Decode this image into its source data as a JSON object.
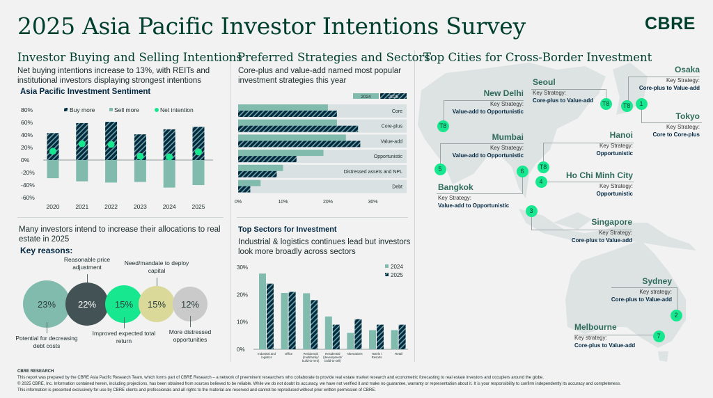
{
  "header": {
    "title": "2025 Asia Pacific Investor Intentions Survey",
    "logo": "CBRE"
  },
  "col1": {
    "heading": "Investor Buying and Selling Intentions",
    "subtitle": "Net buying intentions increase to 13%, with REITs and institutional investors displaying strongest intentions",
    "lower_text": "Many investors intend to increase their allocations to real estate in 2025",
    "key_reasons": "Key reasons:",
    "reasons": [
      {
        "value": "23%",
        "label": "Potential for decreasing debt costs",
        "color": "#80bbad"
      },
      {
        "value": "22%",
        "label": "Reasonable price adjustment",
        "color": "#435254"
      },
      {
        "value": "15%",
        "label": "Improved expected total return",
        "color": "#17e88f"
      },
      {
        "value": "15%",
        "label": "Need/mandate to deploy capital",
        "color": "#dbd99a"
      },
      {
        "value": "12%",
        "label": "More distressed opportunities",
        "color": "#cacaca"
      }
    ]
  },
  "col2": {
    "heading": "Preferred Strategies and Sectors",
    "subtitle": "Core-plus and value-add named most popular investment strategies this year",
    "sectors_title": "Top Sectors for Investment",
    "sectors_subtitle": "Industrial & logistics continues lead but investors look more broadly across sectors"
  },
  "col3": {
    "heading": "Top Cities for Cross-Border Investment",
    "cities": [
      {
        "name": "Osaka",
        "rank": "T8",
        "key_label": "Key Strategy:",
        "strategy": "Core-plus to Value-add"
      },
      {
        "name": "Seoul",
        "rank": "T8",
        "key_label": "Key Strategy:",
        "strategy": "Core-plus to Value-add"
      },
      {
        "name": "Tokyo",
        "rank": "1",
        "key_label": "Key Strategy:",
        "strategy": "Core to Core-plus"
      },
      {
        "name": "New Delhi",
        "rank": "T8",
        "key_label": "Key Strategy:",
        "strategy": "Value-add to Opportunistic"
      },
      {
        "name": "Mumbai",
        "rank": "5",
        "key_label": "Key Strategy:",
        "strategy": "Value-add to Opportunistic"
      },
      {
        "name": "Bangkok",
        "rank": "6",
        "key_label": "Key Strategy:",
        "strategy": "Value-add to Opportunistic"
      },
      {
        "name": "Hanoi",
        "rank": "T8",
        "key_label": "Key Strategy:",
        "strategy": "Opportunistic"
      },
      {
        "name": "Ho Chi Minh City",
        "rank": "4",
        "key_label": "Key Strategy:",
        "strategy": "Opportunistic"
      },
      {
        "name": "Singapore",
        "rank": "3",
        "key_label": "Key Strategy:",
        "strategy": "Core-plus to Value-add"
      },
      {
        "name": "Sydney",
        "rank": "2",
        "key_label": "Key strategy:",
        "strategy": "Core-plus to Value-add"
      },
      {
        "name": "Melbourne",
        "rank": "7",
        "key_label": "Key strategy:",
        "strategy": "Core-plus to Value-add"
      }
    ]
  },
  "footer": {
    "brand": "CBRE RESEARCH",
    "line1": "This report was prepared by the CBRE Asia Pacific Research Team, which forms part of CBRE Research – a network of preeminent researchers who collaborate to provide real estate market research and econometric forecasting to real estate investors and occupiers around the globe.",
    "line2": "© 2025 CBRE, Inc. Information contained herein, including projections, has been obtained from sources believed to be reliable. While we do not doubt its accuracy, we have not verified it and make no guarantee, warranty or representation about it. It is your responsibility to confirm independently its accuracy and completeness.",
    "line3": "This information is presented exclusively for use by CBRE clients and professionals and all rights to the material are reserved and cannot be reproduced without prior written permission of CBRE."
  },
  "colors": {
    "dark": "#032842",
    "sage": "#80bbad",
    "green": "#17e88f",
    "row_bg": "#d9e1e2",
    "brand": "#003f2d"
  },
  "chart_data": [
    {
      "type": "bar",
      "title": "Asia Pacific Investment Sentiment",
      "categories": [
        "2020",
        "2021",
        "2022",
        "2023",
        "2024",
        "2025"
      ],
      "series": [
        {
          "name": "Buy more",
          "values": [
            43,
            59,
            61,
            41,
            49,
            53
          ]
        },
        {
          "name": "Sell more",
          "values": [
            -29,
            -34,
            -36,
            -35,
            -44,
            -40
          ]
        },
        {
          "name": "Net intention",
          "values": [
            14,
            26,
            25,
            6,
            5,
            13
          ]
        }
      ],
      "ylim": [
        -60,
        80
      ],
      "yticks": [
        "80%",
        "60%",
        "40%",
        "20%",
        "0%",
        "-20%",
        "-40%",
        "-60%"
      ],
      "legend": "top"
    },
    {
      "type": "bar",
      "orientation": "horizontal",
      "categories": [
        "Core",
        "Core-plus",
        "Value-add",
        "Opportunistic",
        "Distressed assets and NPL",
        "Debt"
      ],
      "series": [
        {
          "name": "2024",
          "values": [
            20,
            22,
            24,
            19,
            10,
            5
          ]
        },
        {
          "name": "2025",
          "values": [
            22,
            26.7,
            27.2,
            13,
            8.6,
            2.7
          ]
        }
      ],
      "xlim": [
        0,
        37
      ],
      "xticks": [
        "0%",
        "10%",
        "20%",
        "30%"
      ],
      "legend": "top-right"
    },
    {
      "type": "bar",
      "title": "Top Sectors for Investment",
      "categories": [
        [
          "Industrial and",
          "logistics"
        ],
        [
          "Office"
        ],
        [
          "Residential",
          "(multifamily/",
          "build-to-rent)"
        ],
        [
          "Residential",
          "(development/",
          "build-to-sell)"
        ],
        [
          "Alternatives"
        ],
        [
          "Hotels /",
          "Resorts"
        ],
        [
          "Retail"
        ]
      ],
      "series": [
        {
          "name": "2024",
          "values": [
            27.7,
            20.6,
            20.5,
            12,
            6,
            7,
            7
          ]
        },
        {
          "name": "2025",
          "values": [
            24,
            21,
            18,
            9,
            11,
            9,
            9
          ]
        }
      ],
      "ylim": [
        0,
        30
      ],
      "yticks": [
        "30%",
        "20%",
        "10%",
        "0%"
      ],
      "legend": "top-right"
    }
  ]
}
